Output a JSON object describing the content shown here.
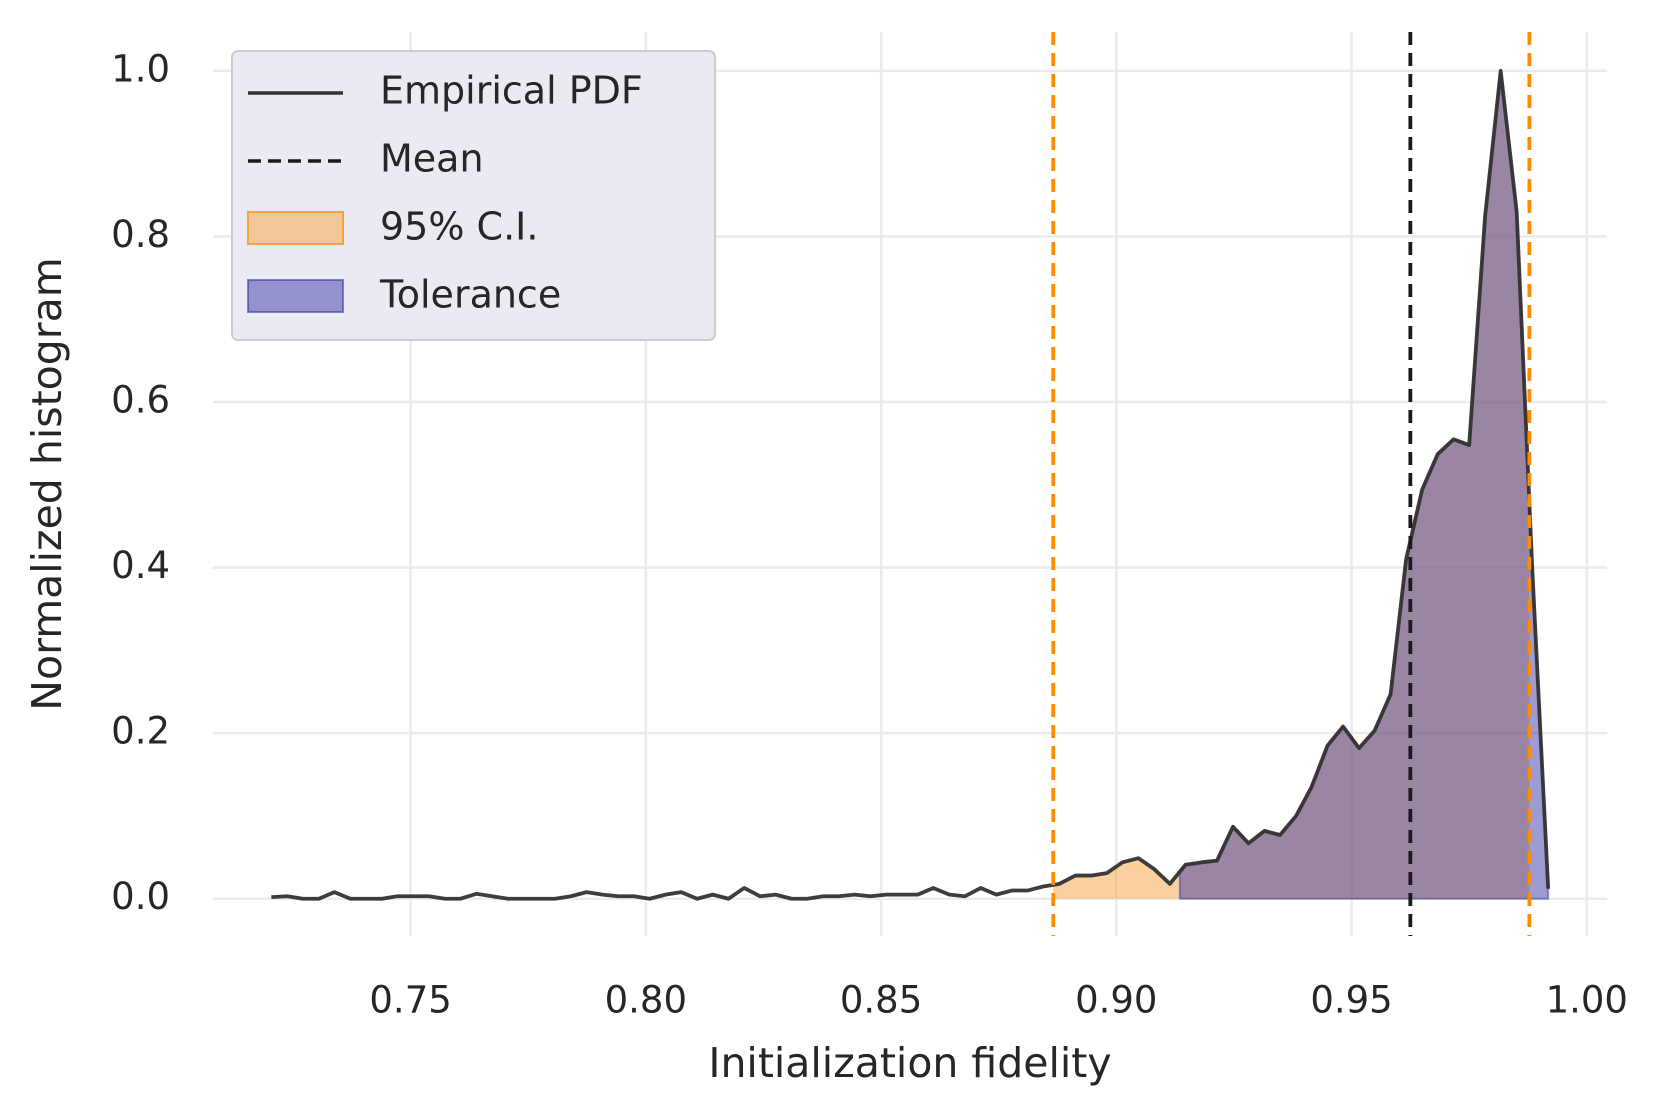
{
  "chart_data": {
    "type": "line",
    "xlabel": "Initialization fidelity",
    "ylabel": "Normalized histogram",
    "x": [
      0.7204,
      0.7238,
      0.7271,
      0.7305,
      0.7338,
      0.7372,
      0.7405,
      0.7439,
      0.7472,
      0.7506,
      0.7539,
      0.7573,
      0.7606,
      0.764,
      0.7673,
      0.7707,
      0.774,
      0.7774,
      0.7807,
      0.7841,
      0.7874,
      0.7908,
      0.7941,
      0.7975,
      0.8008,
      0.8042,
      0.8075,
      0.8109,
      0.8142,
      0.8176,
      0.8209,
      0.8243,
      0.8276,
      0.831,
      0.8343,
      0.8377,
      0.841,
      0.8444,
      0.8477,
      0.8511,
      0.8544,
      0.8578,
      0.8611,
      0.8645,
      0.8678,
      0.8712,
      0.8745,
      0.8779,
      0.8812,
      0.8846,
      0.8879,
      0.8913,
      0.8946,
      0.898,
      0.9013,
      0.9047,
      0.908,
      0.9114,
      0.9147,
      0.9181,
      0.9214,
      0.9248,
      0.9281,
      0.9315,
      0.9348,
      0.9382,
      0.9415,
      0.9449,
      0.9482,
      0.9516,
      0.9549,
      0.9583,
      0.9616,
      0.965,
      0.9683,
      0.9717,
      0.975,
      0.9784,
      0.9817,
      0.9851,
      0.9884,
      0.9918
    ],
    "series": [
      {
        "name": "Empirical PDF",
        "color": "#333333",
        "values": [
          0.002,
          0.003,
          0,
          0,
          0.008,
          0,
          0,
          0,
          0.003,
          0.003,
          0.003,
          0,
          0,
          0.006,
          0.003,
          0,
          0,
          0,
          0,
          0.003,
          0.008,
          0.005,
          0.003,
          0.003,
          0,
          0.005,
          0.008,
          0,
          0.005,
          0,
          0.013,
          0.003,
          0.005,
          0,
          0,
          0.003,
          0.003,
          0.005,
          0.003,
          0.005,
          0.005,
          0.005,
          0.013,
          0.005,
          0.003,
          0.013,
          0.005,
          0.01,
          0.01,
          0.015,
          0.018,
          0.028,
          0.028,
          0.031,
          0.044,
          0.049,
          0.036,
          0.018,
          0.041,
          0.044,
          0.046,
          0.087,
          0.067,
          0.082,
          0.077,
          0.1,
          0.135,
          0.185,
          0.208,
          0.182,
          0.203,
          0.247,
          0.41,
          0.494,
          0.537,
          0.555,
          0.548,
          0.825,
          1.0,
          0.83,
          0.4,
          0.012
        ]
      }
    ],
    "mean": {
      "name": "Mean",
      "value": 0.9625,
      "color": "#1a1a1a"
    },
    "ci": {
      "name": "95% C.I.",
      "range": [
        0.8866,
        0.9878
      ],
      "color": "#ff8c00",
      "fill": "#f5a340"
    },
    "tolerance": {
      "name": "Tolerance",
      "range": [
        0.9135,
        0.9918
      ],
      "fill": "#3a3aa8"
    },
    "xlim": [
      0.708,
      1.0043
    ],
    "ylim": [
      -0.045,
      1.047
    ],
    "xticks": [
      0.75,
      {
        "value": 0.8,
        "label": "0.80"
      },
      0.85,
      {
        "value": 0.9,
        "label": "0.90"
      },
      0.95,
      {
        "value": 1.0,
        "label": "1.00"
      }
    ],
    "yticks": [
      {
        "value": 0,
        "label": "0.0"
      },
      0.2,
      0.4,
      0.6,
      0.8,
      {
        "value": 1.0,
        "label": "1.0"
      }
    ],
    "grid": true,
    "legend": "upper left"
  }
}
